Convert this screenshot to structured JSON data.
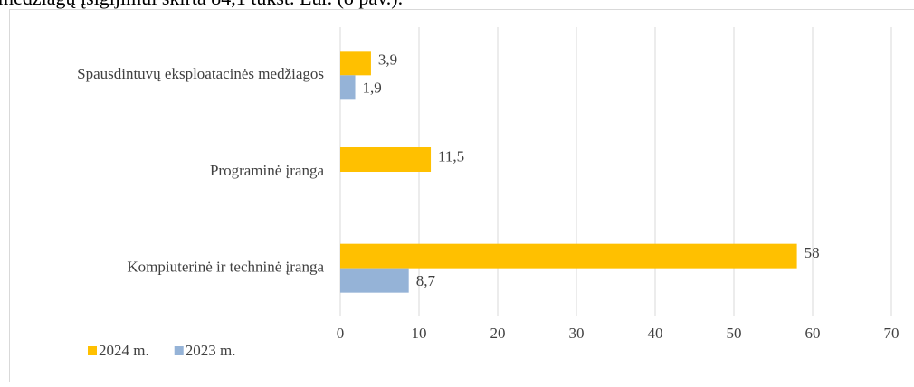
{
  "header_text": "medžiagų įsigijimui skirta 84,1 tūkst. Eur. (8 pav.).",
  "chart_data": {
    "type": "hbar",
    "categories": [
      "Spausdintuvų eksploatacinės medžiagos",
      "Programinė įranga",
      "Kompiuterinė ir techninė  įranga"
    ],
    "series": [
      {
        "name": "2024 m.",
        "color": "#ffc000",
        "values": [
          3.9,
          11.5,
          58
        ],
        "value_labels": [
          "3,9",
          "11,5",
          "58"
        ]
      },
      {
        "name": "2023 m.",
        "color": "#95b3d7",
        "values": [
          1.9,
          null,
          8.7
        ],
        "value_labels": [
          "1,9",
          null,
          "8,7"
        ]
      }
    ],
    "xlim": [
      0,
      70
    ],
    "xticks": [
      0,
      10,
      20,
      30,
      40,
      50,
      60,
      70
    ],
    "grid": true,
    "legend": "bottom-left"
  }
}
